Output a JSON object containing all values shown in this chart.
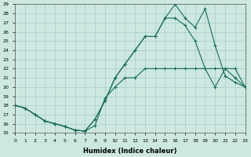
{
  "xlabel": "Humidex (Indice chaleur)",
  "bg_color": "#cce8e0",
  "grid_color": "#a8ccc8",
  "line_color": "#1a6b5a",
  "xlim": [
    0,
    23
  ],
  "ylim": [
    15,
    29
  ],
  "yticks": [
    15,
    16,
    17,
    18,
    19,
    20,
    21,
    22,
    23,
    24,
    25,
    26,
    27,
    28,
    29
  ],
  "xticks": [
    0,
    1,
    2,
    3,
    4,
    5,
    6,
    7,
    8,
    9,
    10,
    11,
    12,
    13,
    14,
    15,
    16,
    17,
    18,
    19,
    20,
    21,
    22,
    23
  ],
  "line1_x": [
    0,
    1,
    2,
    3,
    4,
    5,
    6,
    7,
    8,
    9,
    10,
    11,
    12,
    13,
    14,
    15,
    16,
    17,
    18,
    19,
    20,
    21,
    22,
    23
  ],
  "line1_y": [
    18,
    17.7,
    17,
    16.3,
    16,
    15.7,
    15.3,
    15.2,
    15.8,
    18.8,
    20,
    21,
    21,
    22,
    22,
    22,
    22,
    22,
    22,
    22,
    22,
    22,
    22,
    20
  ],
  "line2_x": [
    0,
    1,
    2,
    3,
    4,
    5,
    6,
    7,
    8,
    9,
    10,
    11,
    12,
    13,
    14,
    15,
    16,
    17,
    18,
    19,
    20,
    21,
    22,
    23
  ],
  "line2_y": [
    18,
    17.7,
    17,
    16.3,
    16,
    15.7,
    15.3,
    15.2,
    16.5,
    18.5,
    21.0,
    22.5,
    24.0,
    25.5,
    25.5,
    27.5,
    27.5,
    26.7,
    25,
    22,
    20,
    22,
    21,
    20
  ],
  "line3_x": [
    0,
    1,
    2,
    3,
    4,
    5,
    6,
    7,
    8,
    9,
    10,
    11,
    12,
    13,
    14,
    15,
    16,
    17,
    18,
    19,
    20,
    21,
    22,
    23
  ],
  "line3_y": [
    18,
    17.7,
    17,
    16.3,
    16,
    15.7,
    15.3,
    15.2,
    16.5,
    18.5,
    21.0,
    22.5,
    24.0,
    25.5,
    25.5,
    27.5,
    29.0,
    27.5,
    26.5,
    28.5,
    24.5,
    21.2,
    20.5,
    20
  ]
}
